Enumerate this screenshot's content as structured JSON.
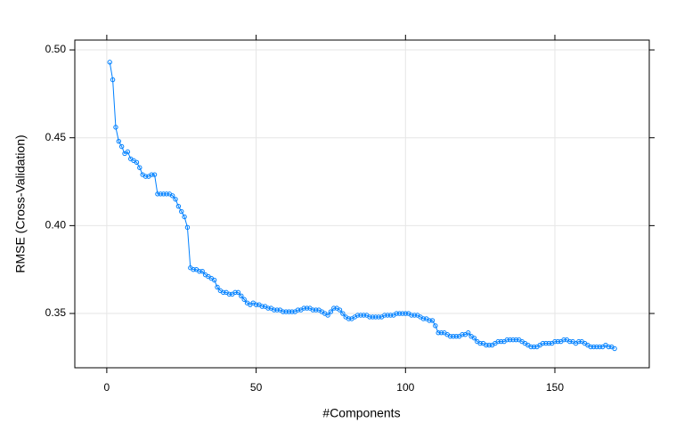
{
  "chart_data": {
    "type": "line",
    "xlabel": "#Components",
    "ylabel": "RMSE (Cross-Validation)",
    "color": "#0080ff",
    "grid": true,
    "xlim": [
      -10.7,
      181.6
    ],
    "ylim": [
      0.3191,
      0.5056
    ],
    "xticks": [
      0,
      50,
      100,
      150
    ],
    "yticks": [
      0.35,
      {
        "value": 0.4,
        "label": "0.40"
      },
      0.45,
      {
        "value": 0.5,
        "label": "0.50"
      }
    ],
    "x": [
      1,
      2,
      3,
      4,
      5,
      6,
      7,
      8,
      9,
      10,
      11,
      12,
      13,
      14,
      15,
      16,
      17,
      18,
      19,
      20,
      21,
      22,
      23,
      24,
      25,
      26,
      27,
      28,
      29,
      30,
      31,
      32,
      33,
      34,
      35,
      36,
      37,
      38,
      39,
      40,
      41,
      42,
      43,
      44,
      45,
      46,
      47,
      48,
      49,
      50,
      51,
      52,
      53,
      54,
      55,
      56,
      57,
      58,
      59,
      60,
      61,
      62,
      63,
      64,
      65,
      66,
      67,
      68,
      69,
      70,
      71,
      72,
      73,
      74,
      75,
      76,
      77,
      78,
      79,
      80,
      81,
      82,
      83,
      84,
      85,
      86,
      87,
      88,
      89,
      90,
      91,
      92,
      93,
      94,
      95,
      96,
      97,
      98,
      99,
      100,
      101,
      102,
      103,
      104,
      105,
      106,
      107,
      108,
      109,
      110,
      111,
      112,
      113,
      114,
      115,
      116,
      117,
      118,
      119,
      120,
      121,
      122,
      123,
      124,
      125,
      126,
      127,
      128,
      129,
      130,
      131,
      132,
      133,
      134,
      135,
      136,
      137,
      138,
      139,
      140,
      141,
      142,
      143,
      144,
      145,
      146,
      147,
      148,
      149,
      150,
      151,
      152,
      153,
      154,
      155,
      156,
      157,
      158,
      159,
      160,
      161,
      162,
      163,
      164,
      165,
      166,
      167,
      168,
      169,
      170
    ],
    "values": [
      0.493,
      0.483,
      0.456,
      0.448,
      0.445,
      0.441,
      0.442,
      0.438,
      0.437,
      0.436,
      0.433,
      0.429,
      0.428,
      0.428,
      0.429,
      0.429,
      0.418,
      0.418,
      0.418,
      0.418,
      0.418,
      0.417,
      0.415,
      0.411,
      0.408,
      0.405,
      0.399,
      0.376,
      0.375,
      0.375,
      0.374,
      0.374,
      0.372,
      0.371,
      0.37,
      0.369,
      0.365,
      0.363,
      0.362,
      0.362,
      0.361,
      0.361,
      0.362,
      0.362,
      0.36,
      0.358,
      0.356,
      0.355,
      0.356,
      0.355,
      0.355,
      0.354,
      0.354,
      0.353,
      0.353,
      0.352,
      0.352,
      0.352,
      0.351,
      0.351,
      0.351,
      0.351,
      0.351,
      0.352,
      0.352,
      0.353,
      0.353,
      0.353,
      0.352,
      0.352,
      0.352,
      0.351,
      0.35,
      0.349,
      0.351,
      0.353,
      0.353,
      0.352,
      0.35,
      0.348,
      0.347,
      0.347,
      0.348,
      0.349,
      0.349,
      0.349,
      0.349,
      0.348,
      0.348,
      0.348,
      0.348,
      0.348,
      0.349,
      0.349,
      0.349,
      0.349,
      0.35,
      0.35,
      0.35,
      0.35,
      0.35,
      0.349,
      0.349,
      0.349,
      0.348,
      0.347,
      0.347,
      0.346,
      0.346,
      0.343,
      0.339,
      0.339,
      0.339,
      0.338,
      0.337,
      0.337,
      0.337,
      0.337,
      0.338,
      0.338,
      0.339,
      0.337,
      0.336,
      0.334,
      0.333,
      0.333,
      0.332,
      0.332,
      0.332,
      0.333,
      0.334,
      0.334,
      0.334,
      0.335,
      0.335,
      0.335,
      0.335,
      0.335,
      0.334,
      0.333,
      0.332,
      0.331,
      0.331,
      0.331,
      0.332,
      0.333,
      0.333,
      0.333,
      0.333,
      0.334,
      0.334,
      0.334,
      0.335,
      0.335,
      0.334,
      0.334,
      0.333,
      0.334,
      0.334,
      0.333,
      0.332,
      0.331,
      0.331,
      0.331,
      0.331,
      0.331,
      0.332,
      0.331,
      0.331,
      0.33
    ]
  }
}
